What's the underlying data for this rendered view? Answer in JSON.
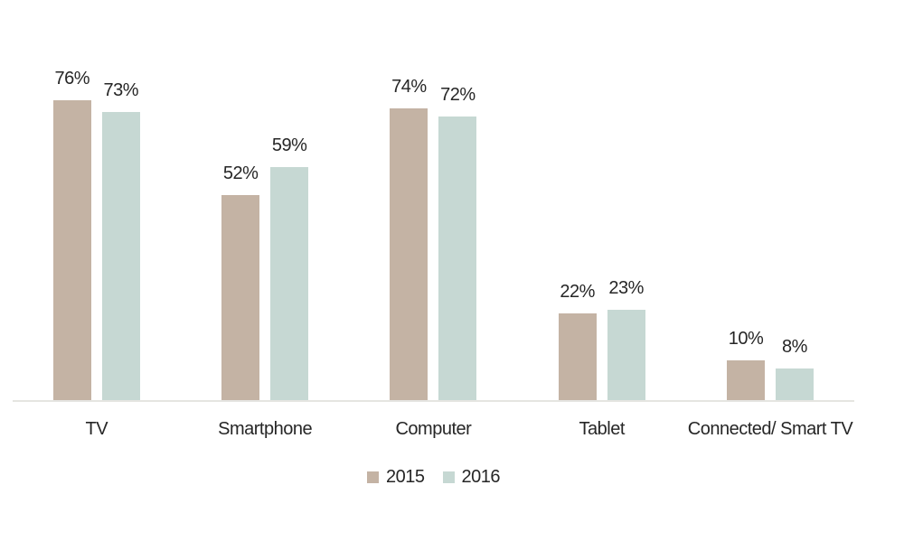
{
  "chart_data": {
    "type": "bar",
    "title": "",
    "xlabel": "",
    "ylabel": "",
    "ylim": [
      0,
      100
    ],
    "grid": false,
    "legend_position": "bottom",
    "value_suffix": "%",
    "categories": [
      "TV",
      "Smartphone",
      "Computer",
      "Tablet",
      "Connected/ Smart TV"
    ],
    "series": [
      {
        "name": "2015",
        "color": "#c4b3a4",
        "values": [
          76,
          52,
          74,
          22,
          10
        ]
      },
      {
        "name": "2016",
        "color": "#c6d8d3",
        "values": [
          73,
          59,
          72,
          23,
          8
        ]
      }
    ],
    "colors": {
      "axis_line": "#e5e5e1",
      "label_text": "#262626",
      "background": "#ffffff"
    }
  }
}
